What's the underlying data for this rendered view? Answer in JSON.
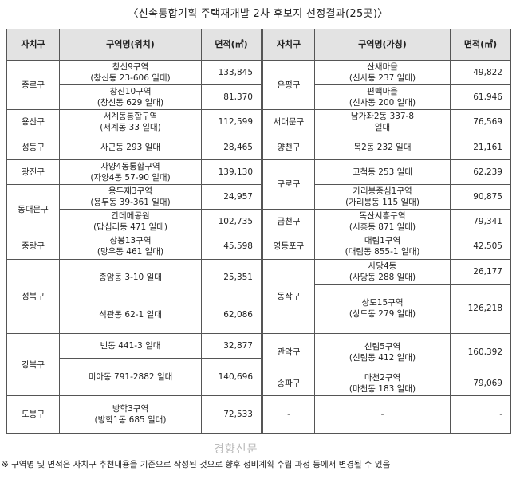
{
  "title": "〈신속통합기획 주택재개발 2차 후보지 선정결과(25곳)〉",
  "headers": {
    "district": "자치구",
    "zone_location": "구역명(위치)",
    "area": "면적(㎡)",
    "district2": "자치구",
    "zone_tentative": "구역명(가칭)",
    "area2": "면적(㎡)"
  },
  "left_groups": [
    {
      "district": "종로구",
      "rows": [
        {
          "name1": "창신9구역",
          "name2": "(창신동 23-606 일대)",
          "area": "133,845"
        },
        {
          "name1": "창신10구역",
          "name2": "(창신동 629 일대)",
          "area": "81,370"
        }
      ]
    },
    {
      "district": "용산구",
      "rows": [
        {
          "name1": "서계동통합구역",
          "name2": "(서계동 33 일대)",
          "area": "112,599"
        }
      ]
    },
    {
      "district": "성동구",
      "rows": [
        {
          "name1": "사근동 293 일대",
          "name2": "",
          "area": "28,465"
        }
      ]
    },
    {
      "district": "광진구",
      "rows": [
        {
          "name1": "자양4동통합구역",
          "name2": "(자양4동 57-90 일대)",
          "area": "139,130"
        }
      ]
    },
    {
      "district": "동대문구",
      "rows": [
        {
          "name1": "용두제3구역",
          "name2": "(용두동 39-361 일대)",
          "area": "24,957"
        },
        {
          "name1": "간데메공원",
          "name2": "(답십리동 471 일대)",
          "area": "102,735"
        }
      ]
    },
    {
      "district": "중랑구",
      "rows": [
        {
          "name1": "상봉13구역",
          "name2": "(망우동 461 일대)",
          "area": "45,598"
        }
      ]
    },
    {
      "district": "성북구",
      "rows": [
        {
          "name1": "종암동 3-10 일대",
          "name2": "",
          "area": "25,351"
        },
        {
          "name1": "석관동 62-1 일대",
          "name2": "",
          "area": "62,086"
        }
      ]
    },
    {
      "district": "강북구",
      "rows": [
        {
          "name1": "번동 441-3 일대",
          "name2": "",
          "area": "32,877"
        },
        {
          "name1": "미아동 791-2882 일대",
          "name2": "",
          "area": "140,696"
        }
      ]
    },
    {
      "district": "도봉구",
      "rows": [
        {
          "name1": "방학3구역",
          "name2": "(방학1동 685 일대)",
          "area": "72,533"
        }
      ]
    }
  ],
  "right_groups": [
    {
      "district": "은평구",
      "rows": [
        {
          "name1": "산새마을",
          "name2": "(신사동 237 일대)",
          "area": "49,822"
        },
        {
          "name1": "편백마을",
          "name2": "(신사동 200 일대)",
          "area": "61,946"
        }
      ]
    },
    {
      "district": "서대문구",
      "rows": [
        {
          "name1": "남가좌2동 337-8",
          "name2": "일대",
          "area": "76,569"
        }
      ]
    },
    {
      "district": "양천구",
      "rows": [
        {
          "name1": "목2동 232 일대",
          "name2": "",
          "area": "21,161"
        }
      ]
    },
    {
      "district": "구로구",
      "rows": [
        {
          "name1": "고척동 253 일대",
          "name2": "",
          "area": "62,239"
        },
        {
          "name1": "가리봉중심1구역",
          "name2": "(가리봉동 115 일대)",
          "area": "90,875"
        }
      ]
    },
    {
      "district": "금천구",
      "rows": [
        {
          "name1": "독산시흥구역",
          "name2": "(시흥동 871 일대)",
          "area": "79,341"
        }
      ]
    },
    {
      "district": "영등포구",
      "rows": [
        {
          "name1": "대림1구역",
          "name2": "(대림동 855-1 일대)",
          "area": "42,505"
        }
      ]
    },
    {
      "district": "동작구",
      "rows": [
        {
          "name1": "사당4동",
          "name2": "(사당동 288 일대)",
          "area": "26,177"
        },
        {
          "name1": "상도15구역",
          "name2": "(상도동 279 일대)",
          "area": "126,218"
        }
      ]
    },
    {
      "district": "관악구",
      "rows": [
        {
          "name1": "신림5구역",
          "name2": "(신림동 412 일대)",
          "area": "160,392"
        }
      ]
    },
    {
      "district": "송파구",
      "rows": [
        {
          "name1": "마천2구역",
          "name2": "(마천동 183 일대)",
          "area": "79,069"
        }
      ]
    },
    {
      "district": "-",
      "rows": [
        {
          "name1": "-",
          "name2": "",
          "area": "-"
        }
      ]
    }
  ],
  "footnote": "※ 구역명 및 면적은 자치구 추천내용을 기준으로 작성된 것으로 향후 정비계획 수립 과정 등에서 변경될 수 있음",
  "watermark": "경향신문"
}
